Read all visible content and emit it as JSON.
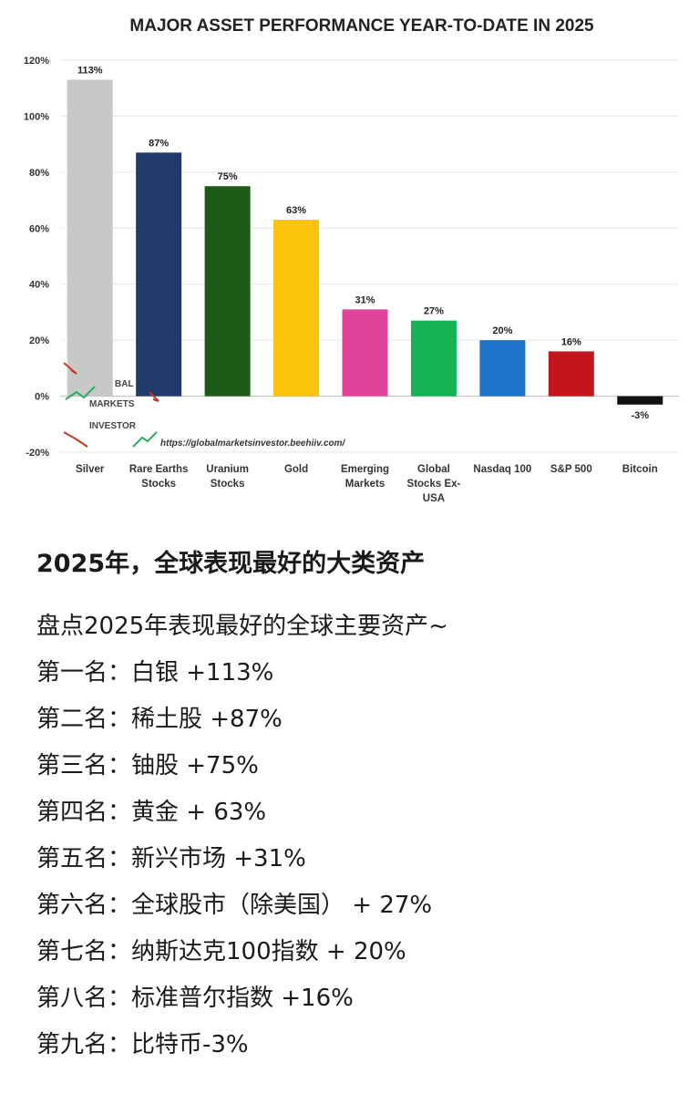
{
  "chart_data": {
    "type": "bar",
    "title": "MAJOR ASSET PERFORMANCE YEAR-TO-DATE IN 2025",
    "xlabel": "",
    "ylabel": "",
    "categories": [
      [
        "Silver"
      ],
      [
        "Rare Earths",
        "Stocks"
      ],
      [
        "Uranium",
        "Stocks"
      ],
      [
        "Gold"
      ],
      [
        "Emerging",
        "Markets"
      ],
      [
        "Global",
        "Stocks Ex-",
        "USA"
      ],
      [
        "Nasdaq 100"
      ],
      [
        "S&P 500"
      ],
      [
        "Bitcoin"
      ]
    ],
    "values": [
      113,
      87,
      75,
      63,
      31,
      27,
      20,
      16,
      -3
    ],
    "value_labels": [
      "113%",
      "87%",
      "75%",
      "63%",
      "31%",
      "27%",
      "20%",
      "16%",
      "-3%"
    ],
    "colors": [
      "#c8c8c8",
      "#1f3a6b",
      "#1e5a18",
      "#fcc30b",
      "#e0449a",
      "#16b356",
      "#1b74c9",
      "#c3161c",
      "#111111"
    ],
    "ylim": [
      -20,
      120
    ],
    "yticks": [
      -20,
      0,
      20,
      40,
      60,
      80,
      100,
      120
    ],
    "ytick_labels": [
      "-20%",
      "0%",
      "20%",
      "40%",
      "60%",
      "80%",
      "100%",
      "120%"
    ],
    "grid": true,
    "legend": "none"
  },
  "watermark": {
    "line1": "BAL",
    "line2": "MARKETS",
    "line3": "INVESTOR",
    "url": "https://globalmarketsinvestor.beehiiv.com/"
  },
  "post": {
    "heading": "2025年，全球表现最好的大类资产",
    "lines": [
      "盘点2025年表现最好的全球主要资产~",
      "第一名：白银 +113%",
      "第二名：稀土股 +87%",
      "第三名：铀股 +75%",
      "第四名：黄金 + 63%",
      "第五名：新兴市场 +31%",
      "第六名：全球股市（除美国） + 27%",
      "第七名：纳斯达克100指数 + 20%",
      "第八名：标准普尔指数 +16%",
      "第九名：比特币-3%"
    ]
  }
}
